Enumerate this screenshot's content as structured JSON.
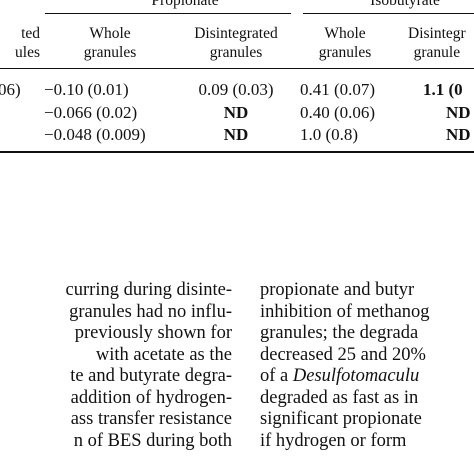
{
  "table": {
    "group_headers": [
      "Propionate",
      "Isobutyrate"
    ],
    "col0_header": [
      "ted",
      "ules"
    ],
    "columns": [
      {
        "line1": "Whole",
        "line2": "granules"
      },
      {
        "line1": "Disintegrated",
        "line2": "granules"
      },
      {
        "line1": "Whole",
        "line2": "granules"
      },
      {
        "line1": "Disintegr",
        "line2": "granule"
      }
    ],
    "rows": [
      [
        "06)",
        "−0.10 (0.01)",
        "0.09 (0.03)",
        "0.41 (0.07)",
        "1.1 (0"
      ],
      [
        "",
        "−0.066 (0.02)",
        "ND",
        "0.40 (0.06)",
        "ND"
      ],
      [
        "",
        "−0.048 (0.009)",
        "ND",
        "1.0 (0.8)",
        "ND"
      ]
    ]
  },
  "left_column": [
    "curring during disinte-",
    "granules had no influ-",
    "previously shown for",
    "with acetate as the",
    "te and butyrate degra-",
    "addition of hydrogen-",
    "ass transfer resistance",
    "n of BES during both"
  ],
  "right_column": [
    {
      "before": "propionate and butyr",
      "italic": "",
      "after": ""
    },
    {
      "before": "inhibition of methanog",
      "italic": "",
      "after": ""
    },
    {
      "before": "granules; the degrada",
      "italic": "",
      "after": ""
    },
    {
      "before": "decreased 25 and 20%",
      "italic": "",
      "after": ""
    },
    {
      "before": "of a ",
      "italic": "Desulfotomaculu",
      "after": ""
    },
    {
      "before": "degraded as fast as in",
      "italic": "",
      "after": ""
    },
    {
      "before": "significant propionate",
      "italic": "",
      "after": ""
    },
    {
      "before": "if hydrogen or form",
      "italic": "",
      "after": ""
    }
  ]
}
